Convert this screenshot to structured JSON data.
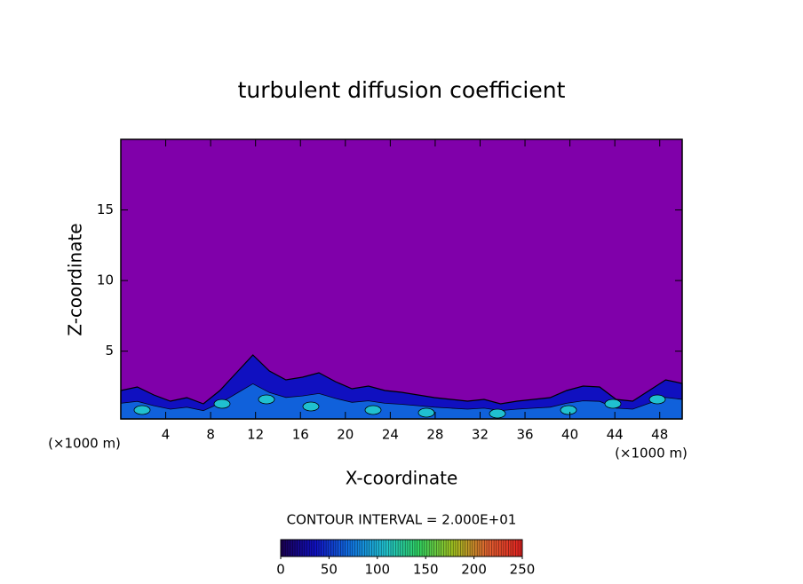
{
  "chart_data": {
    "type": "contour",
    "title": "turbulent diffusion coefficient",
    "x_label": "X-coordinate",
    "y_label": "Z-coordinate",
    "x_unit_label": "(×1000 m)",
    "y_unit_label": "(×1000 m)",
    "xlim": [
      0,
      50
    ],
    "xticks": [
      4,
      8,
      12,
      16,
      20,
      24,
      28,
      32,
      36,
      40,
      44,
      48
    ],
    "ylim": [
      0.2,
      20
    ],
    "yticks": [
      5,
      10,
      15
    ],
    "background_color": "#8000aa",
    "contour_interval_label": "CONTOUR INTERVAL = 2.000E+01",
    "colorbar_lim": [
      0,
      250
    ],
    "colorbar_ticks": [
      0,
      50,
      100,
      150,
      200,
      250
    ],
    "colormap": [
      "#1a0050",
      "#1010c0",
      "#1070e0",
      "#20c0d0",
      "#30d060",
      "#a0c020",
      "#e06030",
      "#e02020"
    ]
  }
}
